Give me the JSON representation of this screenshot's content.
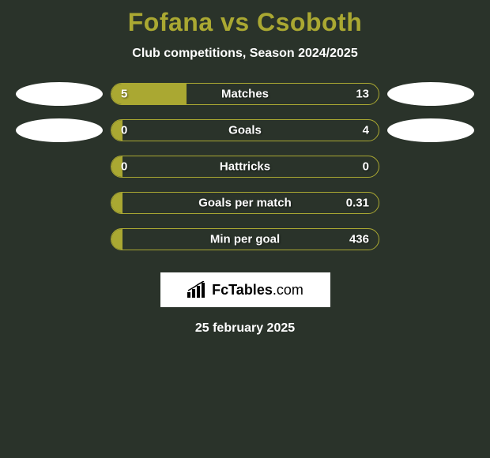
{
  "title": "Fofana vs Csoboth",
  "subtitle": "Club competitions, Season 2024/2025",
  "date": "25 february 2025",
  "brand": {
    "name": "FcTables",
    "suffix": ".com"
  },
  "colors": {
    "background": "#2a332a",
    "accent": "#aaa832",
    "text": "#ffffff",
    "oval": "#ffffff"
  },
  "stats": [
    {
      "label": "Matches",
      "left_value": "5",
      "right_value": "13",
      "left_pct": 28,
      "show_left_oval": true,
      "show_right_oval": true
    },
    {
      "label": "Goals",
      "left_value": "0",
      "right_value": "4",
      "left_pct": 4,
      "show_left_oval": true,
      "show_right_oval": true
    },
    {
      "label": "Hattricks",
      "left_value": "0",
      "right_value": "0",
      "left_pct": 4,
      "show_left_oval": false,
      "show_right_oval": false
    },
    {
      "label": "Goals per match",
      "left_value": "",
      "right_value": "0.31",
      "left_pct": 4,
      "show_left_oval": false,
      "show_right_oval": false
    },
    {
      "label": "Min per goal",
      "left_value": "",
      "right_value": "436",
      "left_pct": 4,
      "show_left_oval": false,
      "show_right_oval": false
    }
  ],
  "bar": {
    "track_width": 340,
    "track_height": 28,
    "border_radius": 14,
    "font_size": 15
  }
}
